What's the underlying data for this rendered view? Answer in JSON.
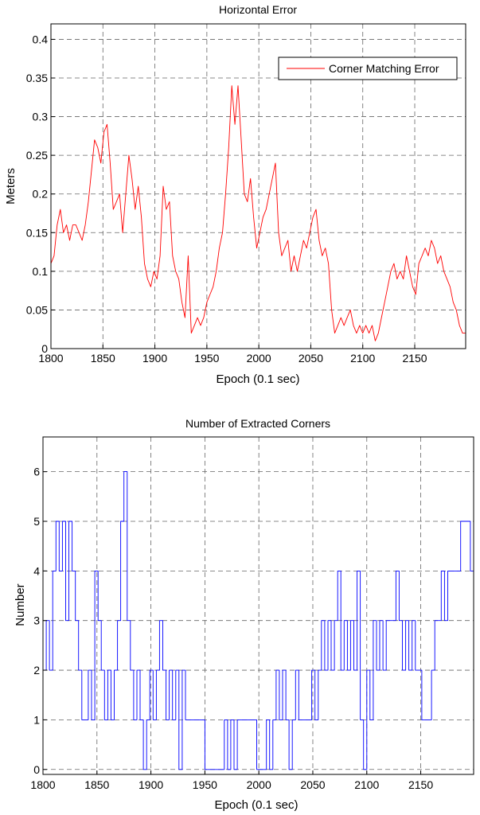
{
  "chart_data": [
    {
      "type": "line",
      "title": "Horizontal Error",
      "xlabel": "Epoch (0.1 sec)",
      "ylabel": "Meters",
      "xlim": [
        1800,
        2199
      ],
      "ylim": [
        0,
        0.42
      ],
      "xticks": [
        "1800",
        "1850",
        "1900",
        "1950",
        "2000",
        "2050",
        "2100",
        "2150"
      ],
      "yticks": [
        "0",
        "0.05",
        "0.1",
        "0.15",
        "0.2",
        "0.25",
        "0.3",
        "0.35",
        "0.4"
      ],
      "grid": true,
      "legend_position": "top-right",
      "colors": {
        "series": "#ff0000",
        "grid": "#666666",
        "axes": "#000000"
      },
      "series": [
        {
          "name": "Corner Matching Error",
          "x": [
            1800,
            1803,
            1806,
            1809,
            1812,
            1815,
            1818,
            1821,
            1824,
            1827,
            1830,
            1833,
            1836,
            1839,
            1842,
            1845,
            1848,
            1851,
            1854,
            1857,
            1860,
            1863,
            1866,
            1869,
            1872,
            1875,
            1878,
            1881,
            1884,
            1887,
            1890,
            1893,
            1896,
            1899,
            1902,
            1905,
            1908,
            1911,
            1914,
            1917,
            1920,
            1923,
            1926,
            1929,
            1932,
            1935,
            1938,
            1941,
            1944,
            1947,
            1950,
            1953,
            1956,
            1959,
            1962,
            1965,
            1968,
            1971,
            1974,
            1977,
            1980,
            1983,
            1986,
            1989,
            1992,
            1995,
            1998,
            2001,
            2004,
            2007,
            2010,
            2013,
            2016,
            2019,
            2022,
            2025,
            2028,
            2031,
            2034,
            2037,
            2040,
            2043,
            2046,
            2049,
            2052,
            2055,
            2058,
            2061,
            2064,
            2067,
            2070,
            2073,
            2076,
            2079,
            2082,
            2085,
            2088,
            2091,
            2094,
            2097,
            2100,
            2103,
            2106,
            2109,
            2112,
            2115,
            2118,
            2121,
            2124,
            2127,
            2130,
            2133,
            2136,
            2139,
            2142,
            2145,
            2148,
            2151,
            2154,
            2157,
            2160,
            2163,
            2166,
            2169,
            2172,
            2175,
            2178,
            2181,
            2184,
            2187,
            2190,
            2193,
            2196,
            2199
          ],
          "y": [
            0.11,
            0.12,
            0.16,
            0.18,
            0.15,
            0.16,
            0.14,
            0.16,
            0.16,
            0.15,
            0.14,
            0.16,
            0.19,
            0.23,
            0.27,
            0.26,
            0.24,
            0.28,
            0.29,
            0.24,
            0.18,
            0.19,
            0.2,
            0.15,
            0.2,
            0.25,
            0.22,
            0.18,
            0.21,
            0.17,
            0.11,
            0.09,
            0.08,
            0.1,
            0.09,
            0.12,
            0.21,
            0.18,
            0.19,
            0.12,
            0.1,
            0.09,
            0.06,
            0.04,
            0.12,
            0.02,
            0.03,
            0.04,
            0.03,
            0.04,
            0.06,
            0.07,
            0.08,
            0.1,
            0.13,
            0.15,
            0.2,
            0.26,
            0.34,
            0.29,
            0.34,
            0.27,
            0.2,
            0.19,
            0.22,
            0.17,
            0.13,
            0.15,
            0.17,
            0.18,
            0.2,
            0.22,
            0.24,
            0.15,
            0.12,
            0.13,
            0.14,
            0.1,
            0.12,
            0.1,
            0.12,
            0.14,
            0.13,
            0.15,
            0.17,
            0.18,
            0.14,
            0.12,
            0.13,
            0.11,
            0.05,
            0.02,
            0.03,
            0.04,
            0.03,
            0.04,
            0.05,
            0.03,
            0.02,
            0.03,
            0.02,
            0.03,
            0.02,
            0.03,
            0.01,
            0.02,
            0.04,
            0.06,
            0.08,
            0.1,
            0.11,
            0.09,
            0.1,
            0.09,
            0.12,
            0.1,
            0.08,
            0.07,
            0.11,
            0.12,
            0.13,
            0.12,
            0.14,
            0.13,
            0.11,
            0.12,
            0.1,
            0.09,
            0.08,
            0.06,
            0.05,
            0.03,
            0.02,
            0.02
          ]
        }
      ]
    },
    {
      "type": "line",
      "title": "Number of Extracted Corners",
      "xlabel": "Epoch (0.1 sec)",
      "ylabel": "Number",
      "xlim": [
        1800,
        2199
      ],
      "ylim": [
        -0.1,
        6.7
      ],
      "xticks": [
        "1800",
        "1850",
        "1900",
        "1950",
        "2000",
        "2050",
        "2100",
        "2150"
      ],
      "yticks": [
        "0",
        "1",
        "2",
        "3",
        "4",
        "5",
        "6"
      ],
      "grid": true,
      "colors": {
        "series": "#0000ff",
        "grid": "#666666",
        "axes": "#000000"
      },
      "series": [
        {
          "x": [
            1800,
            1803,
            1806,
            1809,
            1812,
            1815,
            1818,
            1821,
            1824,
            1827,
            1830,
            1833,
            1836,
            1839,
            1842,
            1845,
            1848,
            1851,
            1854,
            1857,
            1860,
            1863,
            1866,
            1869,
            1872,
            1875,
            1878,
            1881,
            1884,
            1887,
            1890,
            1893,
            1896,
            1899,
            1902,
            1905,
            1908,
            1911,
            1914,
            1917,
            1920,
            1923,
            1926,
            1929,
            1932,
            1935,
            1938,
            1941,
            1944,
            1947,
            1950,
            1953,
            1956,
            1959,
            1962,
            1965,
            1968,
            1971,
            1974,
            1977,
            1980,
            1983,
            1986,
            1989,
            1992,
            1995,
            1998,
            2001,
            2004,
            2007,
            2010,
            2013,
            2016,
            2019,
            2022,
            2025,
            2028,
            2031,
            2034,
            2037,
            2040,
            2043,
            2046,
            2049,
            2052,
            2055,
            2058,
            2061,
            2064,
            2067,
            2070,
            2073,
            2076,
            2079,
            2082,
            2085,
            2088,
            2091,
            2094,
            2097,
            2100,
            2103,
            2106,
            2109,
            2112,
            2115,
            2118,
            2121,
            2124,
            2127,
            2130,
            2133,
            2136,
            2139,
            2142,
            2145,
            2148,
            2151,
            2154,
            2157,
            2160,
            2163,
            2166,
            2169,
            2172,
            2175,
            2178,
            2181,
            2184,
            2187,
            2190,
            2193,
            2196,
            2199
          ],
          "y": [
            3,
            2,
            3,
            2,
            4,
            5,
            4,
            5,
            3,
            5,
            4,
            3,
            2,
            1,
            1,
            2,
            1,
            4,
            3,
            2,
            1,
            2,
            1,
            2,
            3,
            5,
            6,
            3,
            2,
            1,
            2,
            1,
            0,
            1,
            2,
            1,
            2,
            3,
            2,
            1,
            2,
            1,
            2,
            0,
            2,
            1,
            1,
            1,
            1,
            1,
            1,
            0,
            0,
            0,
            0,
            0,
            0,
            1,
            0,
            1,
            0,
            1,
            1,
            1,
            1,
            1,
            1,
            0,
            0,
            0,
            1,
            0,
            1,
            2,
            1,
            2,
            1,
            0,
            1,
            2,
            1,
            1,
            1,
            1,
            2,
            1,
            2,
            3,
            2,
            3,
            2,
            3,
            4,
            2,
            3,
            2,
            3,
            2,
            4,
            1,
            0,
            2,
            1,
            3,
            2,
            3,
            2,
            3,
            3,
            3,
            4,
            3,
            2,
            3,
            2,
            3,
            2,
            2,
            1,
            1,
            1,
            2,
            3,
            3,
            4,
            3,
            4,
            4,
            4,
            4,
            5,
            5,
            5,
            4
          ]
        }
      ]
    }
  ]
}
